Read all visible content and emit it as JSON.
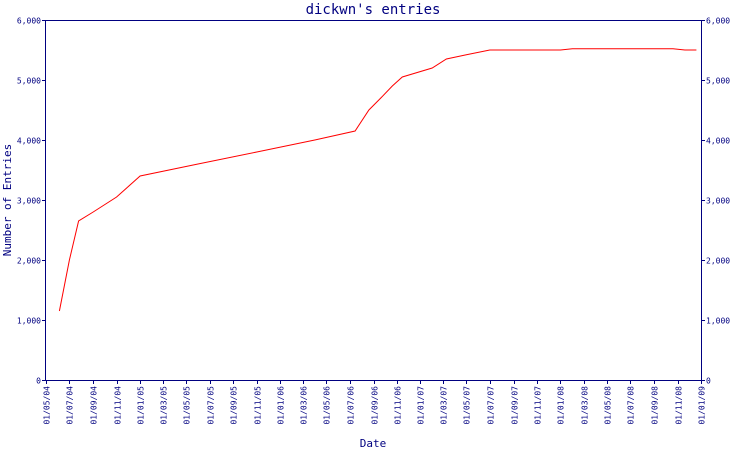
{
  "chart_data": {
    "type": "line",
    "title": "dickwn's entries",
    "xlabel": "Date",
    "ylabel": "Number of Entries",
    "ylim": [
      0,
      6000
    ],
    "y_ticks": [
      "0",
      "1,000",
      "2,000",
      "3,000",
      "4,000",
      "5,000",
      "6,000"
    ],
    "x_ticks": [
      "01/05/04",
      "01/07/04",
      "01/09/04",
      "01/11/04",
      "01/01/05",
      "01/03/05",
      "01/05/05",
      "01/07/05",
      "01/09/05",
      "01/11/05",
      "01/01/06",
      "01/03/06",
      "01/05/06",
      "01/07/06",
      "01/09/06",
      "01/11/06",
      "01/01/07",
      "01/03/07",
      "01/05/07",
      "01/07/07",
      "01/09/07",
      "01/11/07",
      "01/01/08",
      "01/03/08",
      "01/05/08",
      "01/07/08",
      "01/09/08",
      "01/11/08",
      "01/01/09"
    ],
    "grid": false,
    "series": [
      {
        "color": "#ff0000",
        "points": [
          {
            "x": "2004-06-05",
            "y": 1150
          },
          {
            "x": "2004-07-01",
            "y": 2000
          },
          {
            "x": "2004-07-25",
            "y": 2650
          },
          {
            "x": "2004-09-01",
            "y": 2800
          },
          {
            "x": "2004-11-01",
            "y": 3050
          },
          {
            "x": "2005-01-01",
            "y": 3400
          },
          {
            "x": "2005-06-01",
            "y": 3600
          },
          {
            "x": "2005-11-01",
            "y": 3800
          },
          {
            "x": "2006-04-01",
            "y": 4000
          },
          {
            "x": "2006-07-15",
            "y": 4150
          },
          {
            "x": "2006-08-20",
            "y": 4500
          },
          {
            "x": "2006-09-20",
            "y": 4700
          },
          {
            "x": "2006-10-20",
            "y": 4900
          },
          {
            "x": "2006-11-15",
            "y": 5050
          },
          {
            "x": "2007-02-01",
            "y": 5200
          },
          {
            "x": "2007-03-10",
            "y": 5350
          },
          {
            "x": "2007-05-01",
            "y": 5420
          },
          {
            "x": "2007-07-01",
            "y": 5500
          },
          {
            "x": "2008-01-01",
            "y": 5500
          },
          {
            "x": "2008-02-01",
            "y": 5520
          },
          {
            "x": "2008-10-20",
            "y": 5520
          },
          {
            "x": "2008-11-20",
            "y": 5500
          },
          {
            "x": "2008-12-20",
            "y": 5500
          }
        ]
      }
    ]
  }
}
